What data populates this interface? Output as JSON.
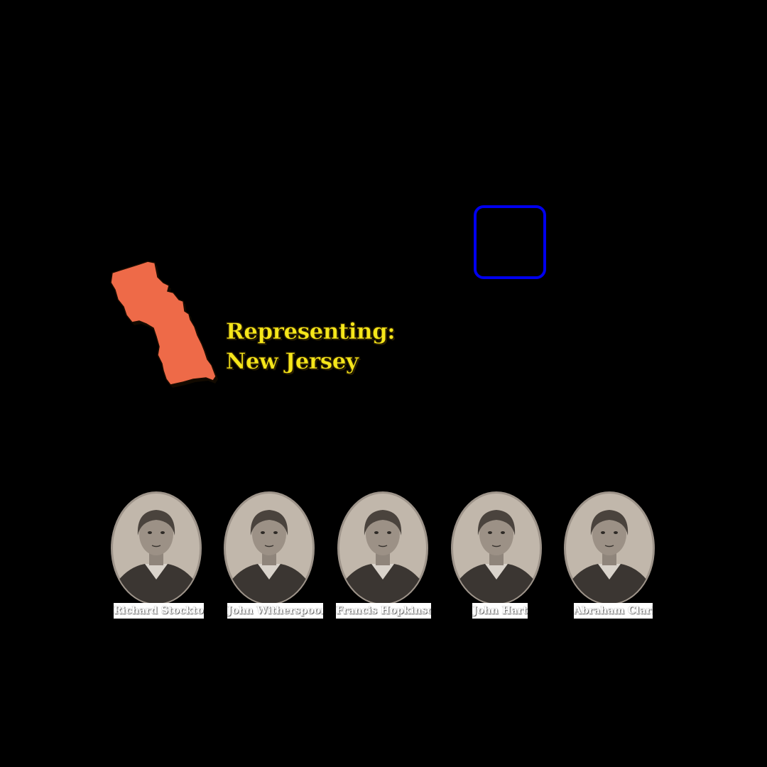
{
  "state": {
    "icon": "new-jersey-state-map-icon",
    "fill_color": "#ee6a48"
  },
  "representing": {
    "label": "Representing:",
    "state_name": "New Jersey",
    "text_color": "#f5e61a"
  },
  "selection_box": {
    "border_color": "#0000ee"
  },
  "delegates": [
    {
      "name": "Richard Stockton",
      "icon": "portrait-richard-stockton-icon"
    },
    {
      "name": "John Witherspoon",
      "icon": "portrait-john-witherspoon-icon"
    },
    {
      "name": "Francis Hopkinson",
      "icon": "portrait-francis-hopkinson-icon"
    },
    {
      "name": "John Hart",
      "icon": "portrait-john-hart-icon"
    },
    {
      "name": "Abraham Clark",
      "icon": "portrait-abraham-clark-icon"
    }
  ]
}
